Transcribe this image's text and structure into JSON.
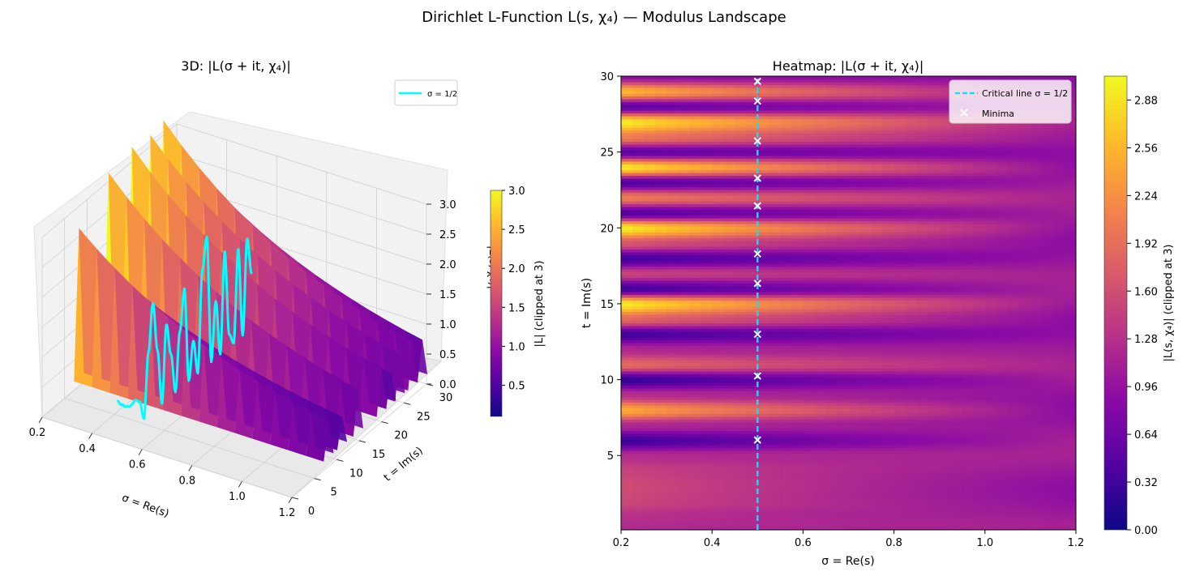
{
  "figure": {
    "suptitle": "Dirichlet L-Function L(s, χ₄) — Modulus Landscape"
  },
  "colormap": {
    "name": "plasma",
    "stops": [
      "#0d0887",
      "#5302a3",
      "#8b0aa5",
      "#b83289",
      "#db5c68",
      "#f48849",
      "#febc2a",
      "#f0f921"
    ]
  },
  "chart_data": [
    {
      "type": "surface",
      "title": "3D: |L(σ + it, χ₄)|",
      "xlabel": "σ = Re(s)",
      "ylabel": "t = Im(s)",
      "zlabel": "|L(s, χ₄)|",
      "xlim": [
        0.2,
        1.2
      ],
      "ylim": [
        0,
        30
      ],
      "zlim": [
        0,
        3
      ],
      "xticks": [
        0.2,
        0.4,
        0.6,
        0.8,
        1.0,
        1.2
      ],
      "yticks": [
        0,
        5,
        10,
        15,
        20,
        25,
        30
      ],
      "zticks": [
        0.0,
        0.5,
        1.0,
        1.5,
        2.0,
        2.5,
        3.0
      ],
      "x_tick_labels": [
        "0.2",
        "0.4",
        "0.6",
        "0.8",
        "1.0",
        "1.2"
      ],
      "y_tick_labels": [
        "0",
        "5",
        "10",
        "15",
        "20",
        "25",
        "30"
      ],
      "z_tick_labels": [
        "0.0",
        "0.5",
        "1.0",
        "1.5",
        "2.0",
        "2.5",
        "3.0"
      ],
      "legend": {
        "entries": [
          "σ = 1/2"
        ],
        "placement": "upper-right",
        "line_color": "#00ffff"
      },
      "colorbar": {
        "label": "|L| (clipped at 3)",
        "range": [
          0.1,
          3.0
        ],
        "ticks": [
          0.5,
          1.0,
          1.5,
          2.0,
          2.5,
          3.0
        ],
        "tick_labels": [
          "0.5",
          "1.0",
          "1.5",
          "2.0",
          "2.5",
          "3.0"
        ]
      },
      "series": [
        {
          "name": "critical line σ = 1/2",
          "t": [
            0,
            1,
            2,
            3,
            4,
            5,
            6,
            7,
            8,
            9,
            10,
            11,
            12,
            13,
            14,
            15,
            16,
            17,
            18,
            19,
            20,
            21,
            22,
            23,
            24,
            25,
            26,
            27,
            28,
            29,
            30
          ],
          "values": [
            0.67,
            0.55,
            0.45,
            0.4,
            0.43,
            0.35,
            0.0,
            1.05,
            1.8,
            0.95,
            0.0,
            1.25,
            0.7,
            0.0,
            0.95,
            1.6,
            0.0,
            0.6,
            0.0,
            1.65,
            2.15,
            0.0,
            0.95,
            0.0,
            1.65,
            0.2,
            0.0,
            1.5,
            0.0,
            1.55,
            0.9
          ]
        }
      ]
    },
    {
      "type": "heatmap",
      "title": "Heatmap: |L(σ + it, χ₄)|",
      "xlabel": "σ = Re(s)",
      "ylabel": "t = Im(s)",
      "xlim": [
        0.2,
        1.2
      ],
      "ylim": [
        0.1,
        30
      ],
      "xticks": [
        0.2,
        0.4,
        0.6,
        0.8,
        1.0,
        1.2
      ],
      "yticks": [
        5,
        10,
        15,
        20,
        25,
        30
      ],
      "x_tick_labels": [
        "0.2",
        "0.4",
        "0.6",
        "0.8",
        "1.0",
        "1.2"
      ],
      "y_tick_labels": [
        "5",
        "10",
        "15",
        "20",
        "25",
        "30"
      ],
      "critical_line_sigma": 0.5,
      "minima_t": [
        6.02,
        10.24,
        12.99,
        16.34,
        18.29,
        21.45,
        23.28,
        25.73,
        28.36,
        29.66
      ],
      "legend": {
        "placement": "upper-right",
        "entries": [
          "Critical line σ = 1/2",
          "Minima"
        ]
      },
      "colorbar": {
        "label": "|L(s, χ₄)| (clipped at 3)",
        "range": [
          0.0,
          3.04
        ],
        "ticks": [
          0.0,
          0.32,
          0.64,
          0.96,
          1.28,
          1.6,
          1.92,
          2.24,
          2.56,
          2.88
        ],
        "tick_labels": [
          "0.00",
          "0.32",
          "0.64",
          "0.96",
          "1.28",
          "1.60",
          "1.92",
          "2.24",
          "2.56",
          "2.88"
        ]
      },
      "profile_at_left_edge": {
        "t": [
          0,
          1,
          2,
          3,
          4,
          5,
          6,
          7,
          8,
          9,
          10,
          11,
          12,
          13,
          14,
          15,
          16,
          17,
          18,
          19,
          20,
          21,
          22,
          23,
          24,
          25,
          26,
          27,
          28,
          29,
          30
        ],
        "values": [
          1.2,
          1.3,
          1.55,
          1.6,
          1.5,
          1.25,
          0.25,
          1.2,
          2.5,
          1.3,
          0.2,
          1.9,
          1.2,
          0.3,
          1.9,
          3.0,
          0.3,
          1.5,
          0.3,
          1.7,
          3.0,
          0.4,
          2.1,
          0.4,
          3.0,
          0.5,
          2.1,
          3.0,
          0.5,
          2.6,
          0.9
        ]
      }
    }
  ]
}
